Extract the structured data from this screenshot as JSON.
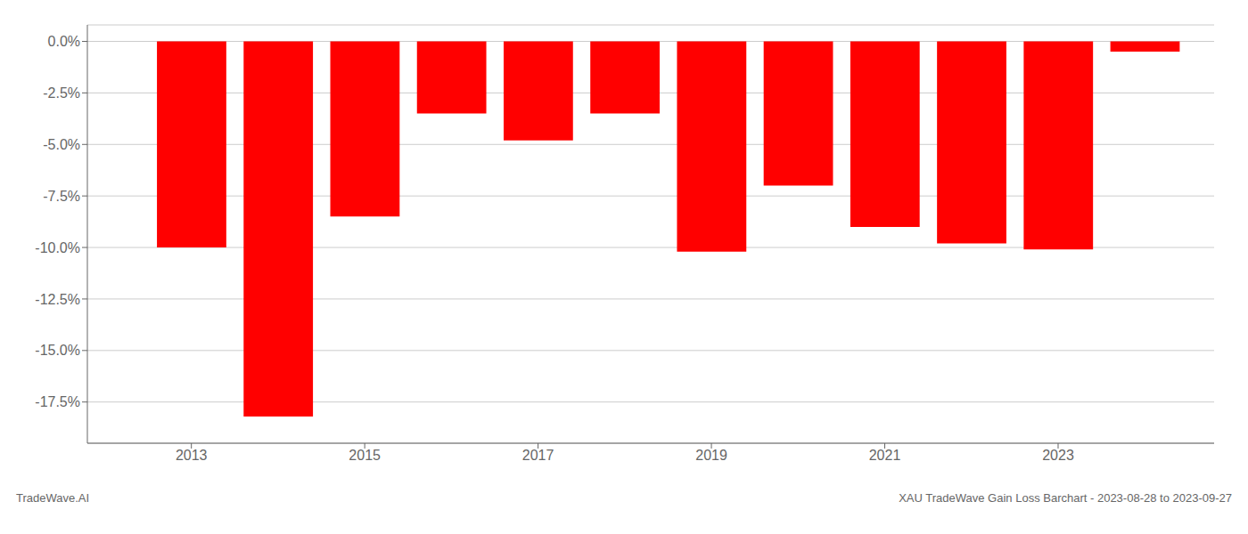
{
  "chart_data": {
    "type": "bar",
    "x": [
      2013,
      2014,
      2015,
      2016,
      2017,
      2018,
      2019,
      2020,
      2021,
      2022,
      2023,
      2024
    ],
    "values": [
      -10.0,
      -18.2,
      -8.5,
      -3.5,
      -4.8,
      -3.5,
      -10.2,
      -7.0,
      -9.0,
      -9.8,
      -10.1,
      -0.5
    ],
    "color": "#ff0000",
    "xlim": [
      2011.8,
      2024.8
    ],
    "xticks": [
      2013,
      2015,
      2017,
      2019,
      2021,
      2023
    ],
    "ylim": [
      -19.5,
      0.8
    ],
    "yticks": [
      {
        "value": 0.0,
        "label": "0.0%"
      },
      {
        "value": -2.5,
        "label": "-2.5%"
      },
      {
        "value": -5.0,
        "label": "-5.0%"
      },
      {
        "value": -7.5,
        "label": "-7.5%"
      },
      {
        "value": -10.0,
        "label": "-10.0%"
      },
      {
        "value": -12.5,
        "label": "-12.5%"
      },
      {
        "value": -15.0,
        "label": "-15.0%"
      },
      {
        "value": -17.5,
        "label": "-17.5%"
      }
    ],
    "grid": true,
    "annotations": [
      "TradeWave.AI",
      "XAU TradeWave Gain Loss Barchart - 2023-08-28 to 2023-09-27"
    ]
  }
}
